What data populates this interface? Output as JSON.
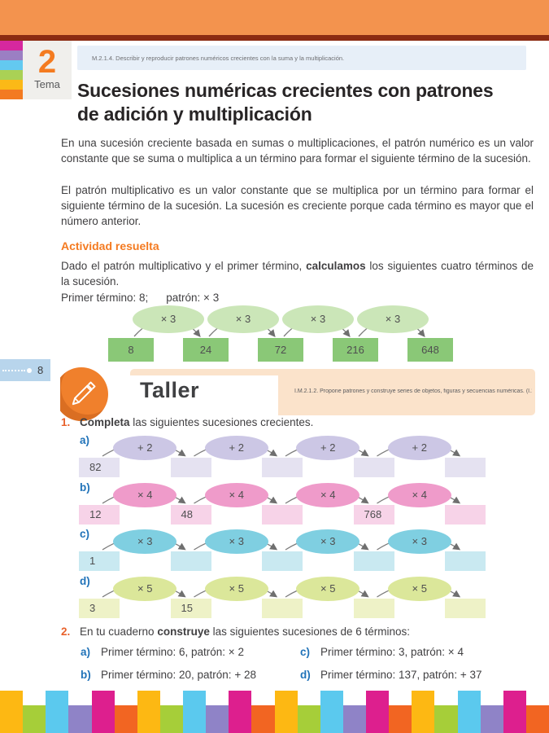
{
  "colors": {
    "band": "#F3934E",
    "rule": "#8B2B12",
    "accent_orange": "#F47B20",
    "list_orange": "#E8612B",
    "label_blue": "#2173B9",
    "standard_box_bg": "#E7EFF8",
    "taller_banner": "#FBE3CB",
    "page_tab": "#B8D5EC",
    "arrow": "#7B7B7B"
  },
  "tema": {
    "number": "2",
    "label": "Tema"
  },
  "curriculum_standard": "M.2.1.4. Describir y reproducir patrones numéricos crecientes con la suma y la multiplicación.",
  "title_lines": [
    "Sucesiones numéricas crecientes con patrones",
    "de adición y multiplicación"
  ],
  "paragraphs": [
    "En una sucesión creciente basada en sumas o multiplicaciones, el patrón numérico es un valor constante que se suma o multiplica a un término para formar el siguiente término de la sucesión.",
    "El patrón multiplicativo es un valor constante que se multiplica por un término para formar el siguiente término de la sucesión. La sucesión es creciente porque cada término es mayor que el número anterior."
  ],
  "activity": {
    "heading": "Actividad resuelta",
    "intro_pre": "Dado el patrón multiplicativo y el primer término, ",
    "intro_bold": "calculamos",
    "intro_post": " los siguientes cuatro términos de la sucesión.",
    "given_term": "Primer término: 8;",
    "given_pattern": "patrón: × 3"
  },
  "example_sequence": {
    "operator": "× 3",
    "values": [
      "8",
      "24",
      "72",
      "216",
      "648"
    ],
    "ellipse_color": "#CBE6B8",
    "box_color": "#8AC877"
  },
  "page_number": "8",
  "taller": {
    "label": "Taller",
    "standard": "I.M.2.1.2. Propone patrones y construye series de objetos, figuras y secuencias numéricas. (I.1.)"
  },
  "exercise1": {
    "number": "1.",
    "heading_bold": "Completa",
    "heading_rest": " las siguientes sucesiones crecientes.",
    "rows": [
      {
        "label": "a)",
        "operator": "+ 2",
        "values": [
          "82",
          "",
          "",
          "",
          ""
        ],
        "ellipse_color": "#CCC7E5",
        "box_color": "#E5E2F1"
      },
      {
        "label": "b)",
        "operator": "× 4",
        "values": [
          "12",
          "48",
          "",
          "768",
          ""
        ],
        "ellipse_color": "#EF9BCA",
        "box_color": "#F7D3E8"
      },
      {
        "label": "c)",
        "operator": "× 3",
        "values": [
          "1",
          "",
          "",
          "",
          ""
        ],
        "ellipse_color": "#7FCFE1",
        "box_color": "#C9E9F1"
      },
      {
        "label": "d)",
        "operator": "× 5",
        "values": [
          "3",
          "15",
          "",
          "",
          ""
        ],
        "ellipse_color": "#DBE79A",
        "box_color": "#EEF2C7"
      }
    ]
  },
  "exercise2": {
    "number": "2.",
    "heading_pre": "En tu cuaderno ",
    "heading_bold": "construye",
    "heading_rest": " las siguientes sucesiones de 6 términos:",
    "items": [
      {
        "label": "a)",
        "text": "Primer término: 6, patrón: × 2"
      },
      {
        "label": "b)",
        "text": "Primer término: 20, patrón: + 28"
      },
      {
        "label": "c)",
        "text": "Primer término: 3, patrón: × 4"
      },
      {
        "label": "d)",
        "text": "Primer término: 137, patrón: + 37"
      }
    ]
  },
  "side_strip_colors": [
    "#D6289E",
    "#9B7FC3",
    "#63C9F0",
    "#AAD155",
    "#FBB917",
    "#F37A21"
  ],
  "footer_bar": {
    "colors": [
      "#FDB813",
      "#A6CE39",
      "#5BC9EE",
      "#8F83C7",
      "#DD1F8E",
      "#F26522"
    ],
    "block_count": 24
  }
}
